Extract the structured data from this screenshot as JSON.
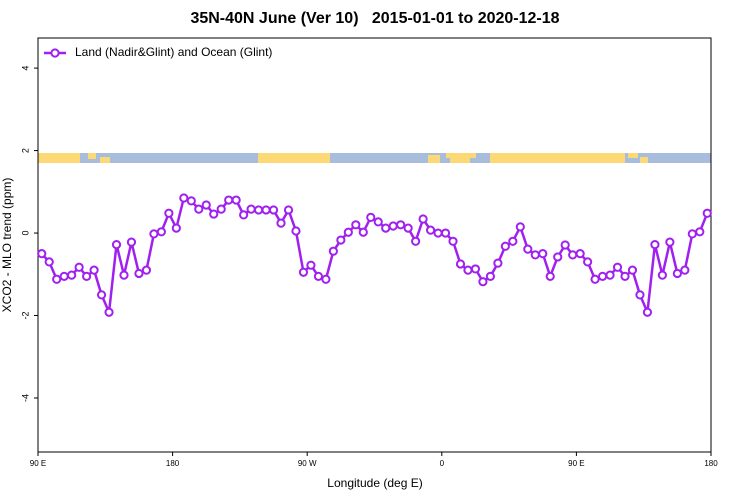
{
  "chart_data": {
    "type": "line",
    "title": "35N-40N June (Ver 10)   2015-01-01 to 2020-12-18",
    "x_label": "Longitude (deg E)",
    "y_label": "XCO2 - MLO trend (ppm)",
    "xlim": [
      90,
      540
    ],
    "ylim": [
      -5.31,
      4.73
    ],
    "xticks": [
      {
        "value": 90,
        "label": "90 E"
      },
      180,
      {
        "value": 270,
        "label": "90 W"
      },
      {
        "value": 360,
        "label": "0"
      },
      {
        "value": 450,
        "label": "90 E"
      },
      {
        "value": 540,
        "label": "180"
      }
    ],
    "yticks": [
      -4,
      -2,
      0,
      2,
      4
    ],
    "legend": "top-left",
    "x": [
      92.5,
      97.5,
      102.5,
      107.5,
      112.5,
      117.5,
      122.5,
      127.5,
      132.5,
      137.5,
      142.5,
      147.5,
      152.5,
      157.5,
      162.5,
      167.5,
      172.5,
      177.5,
      182.5,
      187.5,
      192.5,
      197.5,
      202.5,
      207.5,
      212.5,
      217.5,
      222.5,
      227.5,
      232.5,
      237.5,
      242.5,
      247.5,
      252.5,
      257.5,
      262.5,
      267.5,
      272.5,
      277.5,
      282.5,
      287.5,
      292.5,
      297.5,
      302.5,
      307.5,
      312.5,
      317.5,
      322.5,
      327.5,
      332.5,
      337.5,
      342.5,
      347.5,
      352.5,
      357.5,
      362.5,
      367.5,
      372.5,
      377.5,
      382.5,
      387.5,
      392.5,
      397.5,
      402.5,
      407.5,
      412.5,
      417.5,
      422.5,
      427.5,
      432.5,
      437.5,
      442.5,
      447.5,
      452.5,
      457.5,
      462.5,
      467.5,
      472.5,
      477.5,
      482.5,
      487.5,
      492.5,
      497.5,
      502.5,
      507.5,
      512.5,
      517.5,
      522.5,
      527.5,
      532.5,
      537.5
    ],
    "series": [
      {
        "name": "Land (Nadir&Glint) and Ocean (Glint)",
        "color": "#a020f0",
        "values": [
          -0.5,
          -0.7,
          -1.12,
          -1.05,
          -1.02,
          -0.83,
          -1.05,
          -0.9,
          -1.5,
          -1.92,
          -0.28,
          -1.02,
          -0.22,
          -0.98,
          -0.9,
          -0.02,
          0.03,
          0.48,
          0.12,
          0.85,
          0.78,
          0.58,
          0.68,
          0.46,
          0.58,
          0.8,
          0.8,
          0.44,
          0.58,
          0.56,
          0.56,
          0.56,
          0.24,
          0.56,
          0.05,
          -0.95,
          -0.78,
          -1.05,
          -1.12,
          -0.44,
          -0.17,
          0.02,
          0.2,
          0.02,
          0.38,
          0.27,
          0.12,
          0.17,
          0.2,
          0.12,
          -0.2,
          0.34,
          0.07,
          0.0,
          0.0,
          -0.2,
          -0.75,
          -0.9,
          -0.87,
          -1.18,
          -1.05,
          -0.73,
          -0.32,
          -0.2,
          0.15,
          -0.39,
          -0.53,
          -0.5,
          -1.05,
          -0.58,
          -0.29,
          -0.53,
          -0.5,
          -0.7,
          -1.12,
          -1.05,
          -1.02,
          -0.83,
          -1.05,
          -0.9,
          -1.5,
          -1.92,
          -0.28,
          -1.02,
          -0.22,
          -0.98,
          -0.9,
          -0.02,
          0.03,
          0.48
        ]
      }
    ]
  }
}
